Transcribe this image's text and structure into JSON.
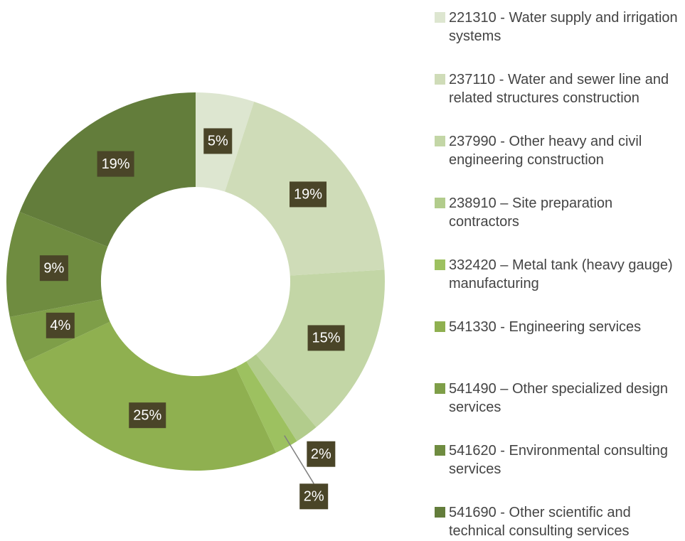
{
  "chart_data": {
    "type": "donut",
    "categories": [
      "221310 - Water supply and irrigation systems",
      "237110 - Water and sewer line and related structures construction",
      "237990 - Other heavy and civil engineering construction",
      "238910 – Site preparation contractors",
      "332420 – Metal tank (heavy gauge) manufacturing",
      "541330 - Engineering services",
      "541490 – Other specialized design services",
      "541620 - Environmental consulting services",
      "541690 - Other scientific and technical consulting services"
    ],
    "values": [
      5,
      19,
      15,
      2,
      2,
      25,
      4,
      9,
      19
    ],
    "value_labels": [
      "5%",
      "19%",
      "15%",
      "2%",
      "2%",
      "25%",
      "4%",
      "9%",
      "19%"
    ],
    "colors": [
      "#dde6d0",
      "#cfdcb8",
      "#c3d6a6",
      "#b2cc8c",
      "#9dc160",
      "#8fb050",
      "#7e9e48",
      "#6f8c40",
      "#637d3b"
    ],
    "legend": "right"
  }
}
